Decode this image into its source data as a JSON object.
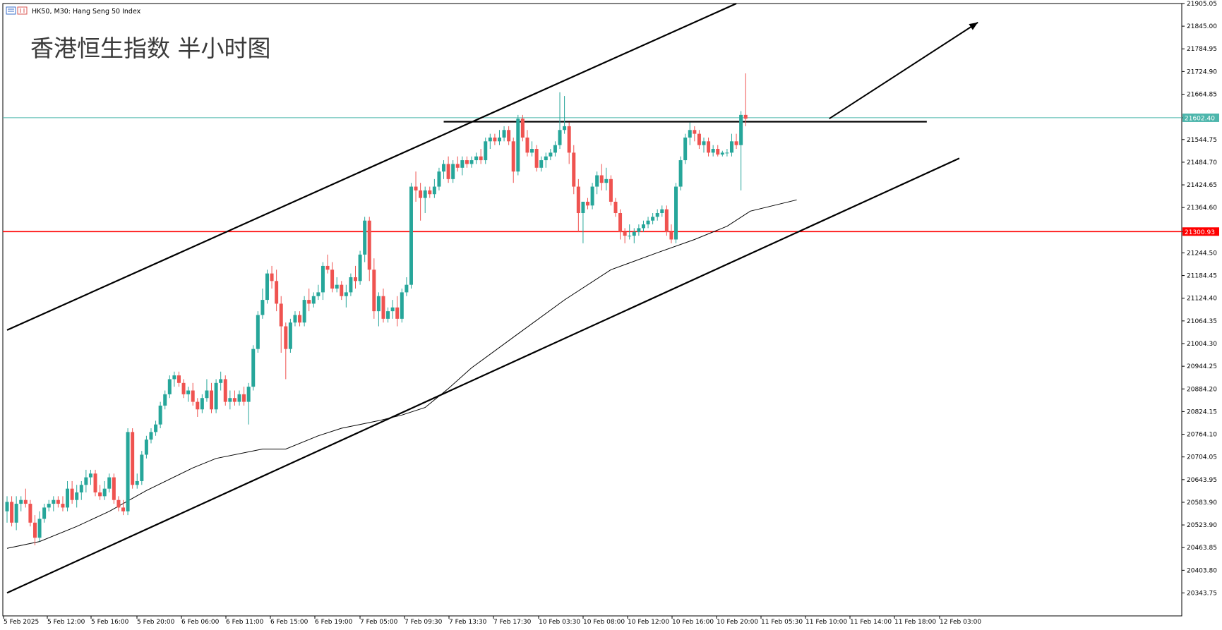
{
  "header": {
    "symbol_text": "HK50, M30:  Hang Seng 50 Index",
    "chart_title": "香港恒生指数 半小时图"
  },
  "colors": {
    "bull": "#26a69a",
    "bear": "#ef5350",
    "support": "#ff0000",
    "current_price_line": "#4db6ac",
    "trendline": "#000000",
    "moving_average": "#000000"
  },
  "chart_data": {
    "type": "candlestick",
    "title": "香港恒生指数 半小时图",
    "symbol": "HK50",
    "timeframe": "M30",
    "instrument": "Hang Seng 50 Index",
    "ylim": [
      20283,
      21905
    ],
    "y_ticks": [
      "21905.05",
      "21845.00",
      "21784.95",
      "21724.90",
      "21664.85",
      "21602.40",
      "21544.75",
      "21484.70",
      "21424.65",
      "21364.60",
      "21300.93",
      "21244.50",
      "21184.45",
      "21124.40",
      "21064.35",
      "21004.30",
      "20944.25",
      "20884.20",
      "20824.15",
      "20764.10",
      "20704.05",
      "20643.95",
      "20583.90",
      "20523.90",
      "20463.85",
      "20403.80",
      "20343.75"
    ],
    "x_labels": [
      "5 Feb 2025",
      "5 Feb 12:00",
      "5 Feb 16:00",
      "5 Feb 20:00",
      "6 Feb 06:00",
      "6 Feb 11:00",
      "6 Feb 15:00",
      "6 Feb 19:00",
      "7 Feb 05:00",
      "7 Feb 09:30",
      "7 Feb 13:30",
      "7 Feb 17:30",
      "10 Feb 03:30",
      "10 Feb 08:00",
      "10 Feb 12:00",
      "10 Feb 16:00",
      "10 Feb 20:00",
      "11 Feb 05:30",
      "11 Feb 10:00",
      "11 Feb 14:00",
      "11 Feb 18:00",
      "12 Feb 03:00"
    ],
    "current_price": {
      "value": 21602.4,
      "label": "21602.40"
    },
    "support_level": {
      "value": 21300.93,
      "label": "21300.93"
    },
    "resistance_level": 21590,
    "trendlines": [
      {
        "name": "upper-channel",
        "points": [
          [
            0,
            21040
          ],
          [
            157,
            21905
          ]
        ]
      },
      {
        "name": "lower-channel",
        "points": [
          [
            0,
            20344
          ],
          [
            205,
            21495
          ]
        ]
      },
      {
        "name": "resistance",
        "points": [
          [
            94,
            21592
          ],
          [
            198,
            21592
          ]
        ]
      },
      {
        "name": "direction-arrow",
        "points": [
          [
            177,
            21600
          ],
          [
            209,
            21855
          ]
        ]
      }
    ],
    "moving_average": [
      [
        0,
        20462
      ],
      [
        7,
        20480
      ],
      [
        15,
        20520
      ],
      [
        22,
        20560
      ],
      [
        30,
        20615
      ],
      [
        40,
        20675
      ],
      [
        45,
        20700
      ],
      [
        55,
        20725
      ],
      [
        60,
        20725
      ],
      [
        67,
        20760
      ],
      [
        72,
        20780
      ],
      [
        80,
        20800
      ],
      [
        85,
        20815
      ],
      [
        90,
        20835
      ],
      [
        95,
        20885
      ],
      [
        100,
        20940
      ],
      [
        110,
        21030
      ],
      [
        120,
        21120
      ],
      [
        130,
        21200
      ],
      [
        140,
        21245
      ],
      [
        148,
        21280
      ],
      [
        155,
        21315
      ],
      [
        160,
        21355
      ],
      [
        165,
        21370
      ],
      [
        170,
        21385
      ]
    ],
    "candles": [
      {
        "o": 20560,
        "h": 20600,
        "l": 20530,
        "c": 20585
      },
      {
        "o": 20585,
        "h": 20600,
        "l": 20520,
        "c": 20530
      },
      {
        "o": 20530,
        "h": 20600,
        "l": 20510,
        "c": 20580
      },
      {
        "o": 20580,
        "h": 20600,
        "l": 20560,
        "c": 20590
      },
      {
        "o": 20590,
        "h": 20620,
        "l": 20570,
        "c": 20580
      },
      {
        "o": 20580,
        "h": 20590,
        "l": 20520,
        "c": 20530
      },
      {
        "o": 20530,
        "h": 20550,
        "l": 20470,
        "c": 20490
      },
      {
        "o": 20490,
        "h": 20560,
        "l": 20480,
        "c": 20540
      },
      {
        "o": 20540,
        "h": 20580,
        "l": 20530,
        "c": 20570
      },
      {
        "o": 20570,
        "h": 20590,
        "l": 20560,
        "c": 20580
      },
      {
        "o": 20580,
        "h": 20600,
        "l": 20560,
        "c": 20590
      },
      {
        "o": 20590,
        "h": 20600,
        "l": 20570,
        "c": 20580
      },
      {
        "o": 20580,
        "h": 20600,
        "l": 20560,
        "c": 20570
      },
      {
        "o": 20570,
        "h": 20640,
        "l": 20560,
        "c": 20620
      },
      {
        "o": 20620,
        "h": 20640,
        "l": 20580,
        "c": 20590
      },
      {
        "o": 20590,
        "h": 20630,
        "l": 20570,
        "c": 20610
      },
      {
        "o": 20610,
        "h": 20640,
        "l": 20590,
        "c": 20630
      },
      {
        "o": 20630,
        "h": 20670,
        "l": 20610,
        "c": 20650
      },
      {
        "o": 20650,
        "h": 20670,
        "l": 20630,
        "c": 20660
      },
      {
        "o": 20660,
        "h": 20670,
        "l": 20600,
        "c": 20610
      },
      {
        "o": 20610,
        "h": 20630,
        "l": 20590,
        "c": 20600
      },
      {
        "o": 20600,
        "h": 20640,
        "l": 20590,
        "c": 20620
      },
      {
        "o": 20620,
        "h": 20660,
        "l": 20610,
        "c": 20650
      },
      {
        "o": 20650,
        "h": 20660,
        "l": 20580,
        "c": 20590
      },
      {
        "o": 20590,
        "h": 20600,
        "l": 20560,
        "c": 20570
      },
      {
        "o": 20570,
        "h": 20590,
        "l": 20550,
        "c": 20560
      },
      {
        "o": 20560,
        "h": 20780,
        "l": 20550,
        "c": 20770
      },
      {
        "o": 20770,
        "h": 20780,
        "l": 20620,
        "c": 20630
      },
      {
        "o": 20630,
        "h": 20660,
        "l": 20620,
        "c": 20640
      },
      {
        "o": 20640,
        "h": 20720,
        "l": 20630,
        "c": 20710
      },
      {
        "o": 20710,
        "h": 20760,
        "l": 20700,
        "c": 20750
      },
      {
        "o": 20750,
        "h": 20780,
        "l": 20740,
        "c": 20770
      },
      {
        "o": 20770,
        "h": 20800,
        "l": 20760,
        "c": 20790
      },
      {
        "o": 20790,
        "h": 20850,
        "l": 20780,
        "c": 20840
      },
      {
        "o": 20840,
        "h": 20880,
        "l": 20830,
        "c": 20870
      },
      {
        "o": 20870,
        "h": 20920,
        "l": 20860,
        "c": 20910
      },
      {
        "o": 20910,
        "h": 20930,
        "l": 20890,
        "c": 20920
      },
      {
        "o": 20920,
        "h": 20930,
        "l": 20890,
        "c": 20900
      },
      {
        "o": 20900,
        "h": 20910,
        "l": 20860,
        "c": 20870
      },
      {
        "o": 20870,
        "h": 20890,
        "l": 20850,
        "c": 20880
      },
      {
        "o": 20880,
        "h": 20900,
        "l": 20840,
        "c": 20850
      },
      {
        "o": 20850,
        "h": 20860,
        "l": 20810,
        "c": 20830
      },
      {
        "o": 20830,
        "h": 20870,
        "l": 20820,
        "c": 20860
      },
      {
        "o": 20860,
        "h": 20910,
        "l": 20850,
        "c": 20880
      },
      {
        "o": 20880,
        "h": 20900,
        "l": 20820,
        "c": 20830
      },
      {
        "o": 20830,
        "h": 20910,
        "l": 20820,
        "c": 20900
      },
      {
        "o": 20900,
        "h": 20930,
        "l": 20880,
        "c": 20910
      },
      {
        "o": 20910,
        "h": 20920,
        "l": 20840,
        "c": 20850
      },
      {
        "o": 20850,
        "h": 20880,
        "l": 20830,
        "c": 20860
      },
      {
        "o": 20860,
        "h": 20880,
        "l": 20840,
        "c": 20850
      },
      {
        "o": 20850,
        "h": 20880,
        "l": 20840,
        "c": 20870
      },
      {
        "o": 20870,
        "h": 20890,
        "l": 20840,
        "c": 20850
      },
      {
        "o": 20850,
        "h": 20900,
        "l": 20790,
        "c": 20890
      },
      {
        "o": 20890,
        "h": 21000,
        "l": 20880,
        "c": 20990
      },
      {
        "o": 20990,
        "h": 21090,
        "l": 20980,
        "c": 21080
      },
      {
        "o": 21080,
        "h": 21150,
        "l": 21070,
        "c": 21120
      },
      {
        "o": 21120,
        "h": 21200,
        "l": 21110,
        "c": 21190
      },
      {
        "o": 21190,
        "h": 21210,
        "l": 21150,
        "c": 21170
      },
      {
        "o": 21170,
        "h": 21200,
        "l": 21090,
        "c": 21110
      },
      {
        "o": 21110,
        "h": 21130,
        "l": 20980,
        "c": 21050
      },
      {
        "o": 21050,
        "h": 21060,
        "l": 20910,
        "c": 20990
      },
      {
        "o": 20990,
        "h": 21070,
        "l": 20980,
        "c": 21060
      },
      {
        "o": 21060,
        "h": 21090,
        "l": 21050,
        "c": 21080
      },
      {
        "o": 21080,
        "h": 21090,
        "l": 21050,
        "c": 21060
      },
      {
        "o": 21060,
        "h": 21130,
        "l": 21050,
        "c": 21120
      },
      {
        "o": 21120,
        "h": 21150,
        "l": 21090,
        "c": 21110
      },
      {
        "o": 21110,
        "h": 21140,
        "l": 21100,
        "c": 21130
      },
      {
        "o": 21130,
        "h": 21160,
        "l": 21120,
        "c": 21140
      },
      {
        "o": 21140,
        "h": 21220,
        "l": 21120,
        "c": 21210
      },
      {
        "o": 21210,
        "h": 21240,
        "l": 21190,
        "c": 21200
      },
      {
        "o": 21200,
        "h": 21220,
        "l": 21140,
        "c": 21150
      },
      {
        "o": 21150,
        "h": 21180,
        "l": 21140,
        "c": 21160
      },
      {
        "o": 21160,
        "h": 21170,
        "l": 21120,
        "c": 21130
      },
      {
        "o": 21130,
        "h": 21160,
        "l": 21100,
        "c": 21140
      },
      {
        "o": 21140,
        "h": 21190,
        "l": 21130,
        "c": 21180
      },
      {
        "o": 21180,
        "h": 21210,
        "l": 21150,
        "c": 21170
      },
      {
        "o": 21170,
        "h": 21250,
        "l": 21160,
        "c": 21240
      },
      {
        "o": 21240,
        "h": 21340,
        "l": 21220,
        "c": 21330
      },
      {
        "o": 21330,
        "h": 21340,
        "l": 21170,
        "c": 21200
      },
      {
        "o": 21200,
        "h": 21230,
        "l": 21070,
        "c": 21090
      },
      {
        "o": 21090,
        "h": 21140,
        "l": 21050,
        "c": 21130
      },
      {
        "o": 21130,
        "h": 21150,
        "l": 21060,
        "c": 21070
      },
      {
        "o": 21070,
        "h": 21100,
        "l": 21060,
        "c": 21090
      },
      {
        "o": 21090,
        "h": 21120,
        "l": 21070,
        "c": 21100
      },
      {
        "o": 21100,
        "h": 21130,
        "l": 21050,
        "c": 21070
      },
      {
        "o": 21070,
        "h": 21150,
        "l": 21060,
        "c": 21140
      },
      {
        "o": 21140,
        "h": 21180,
        "l": 21130,
        "c": 21160
      },
      {
        "o": 21160,
        "h": 21430,
        "l": 21150,
        "c": 21420
      },
      {
        "o": 21420,
        "h": 21460,
        "l": 21380,
        "c": 21410
      },
      {
        "o": 21410,
        "h": 21430,
        "l": 21330,
        "c": 21390
      },
      {
        "o": 21390,
        "h": 21420,
        "l": 21350,
        "c": 21410
      },
      {
        "o": 21410,
        "h": 21420,
        "l": 21390,
        "c": 21400
      },
      {
        "o": 21400,
        "h": 21440,
        "l": 21390,
        "c": 21420
      },
      {
        "o": 21420,
        "h": 21470,
        "l": 21410,
        "c": 21460
      },
      {
        "o": 21460,
        "h": 21490,
        "l": 21440,
        "c": 21480
      },
      {
        "o": 21480,
        "h": 21500,
        "l": 21430,
        "c": 21440
      },
      {
        "o": 21440,
        "h": 21490,
        "l": 21430,
        "c": 21480
      },
      {
        "o": 21480,
        "h": 21500,
        "l": 21460,
        "c": 21470
      },
      {
        "o": 21470,
        "h": 21500,
        "l": 21450,
        "c": 21490
      },
      {
        "o": 21490,
        "h": 21500,
        "l": 21470,
        "c": 21480
      },
      {
        "o": 21480,
        "h": 21500,
        "l": 21470,
        "c": 21490
      },
      {
        "o": 21490,
        "h": 21510,
        "l": 21480,
        "c": 21500
      },
      {
        "o": 21500,
        "h": 21520,
        "l": 21480,
        "c": 21490
      },
      {
        "o": 21490,
        "h": 21550,
        "l": 21480,
        "c": 21540
      },
      {
        "o": 21540,
        "h": 21560,
        "l": 21520,
        "c": 21550
      },
      {
        "o": 21550,
        "h": 21560,
        "l": 21530,
        "c": 21540
      },
      {
        "o": 21540,
        "h": 21570,
        "l": 21530,
        "c": 21550
      },
      {
        "o": 21550,
        "h": 21580,
        "l": 21540,
        "c": 21570
      },
      {
        "o": 21570,
        "h": 21580,
        "l": 21530,
        "c": 21540
      },
      {
        "o": 21540,
        "h": 21550,
        "l": 21430,
        "c": 21460
      },
      {
        "o": 21460,
        "h": 21610,
        "l": 21450,
        "c": 21600
      },
      {
        "o": 21600,
        "h": 21610,
        "l": 21540,
        "c": 21550
      },
      {
        "o": 21550,
        "h": 21570,
        "l": 21500,
        "c": 21510
      },
      {
        "o": 21510,
        "h": 21540,
        "l": 21500,
        "c": 21520
      },
      {
        "o": 21520,
        "h": 21530,
        "l": 21460,
        "c": 21470
      },
      {
        "o": 21470,
        "h": 21500,
        "l": 21460,
        "c": 21490
      },
      {
        "o": 21490,
        "h": 21510,
        "l": 21470,
        "c": 21500
      },
      {
        "o": 21500,
        "h": 21520,
        "l": 21490,
        "c": 21510
      },
      {
        "o": 21510,
        "h": 21540,
        "l": 21500,
        "c": 21530
      },
      {
        "o": 21530,
        "h": 21670,
        "l": 21520,
        "c": 21570
      },
      {
        "o": 21570,
        "h": 21660,
        "l": 21560,
        "c": 21580
      },
      {
        "o": 21580,
        "h": 21590,
        "l": 21480,
        "c": 21510
      },
      {
        "o": 21510,
        "h": 21530,
        "l": 21400,
        "c": 21420
      },
      {
        "o": 21420,
        "h": 21440,
        "l": 21300,
        "c": 21350
      },
      {
        "o": 21350,
        "h": 21380,
        "l": 21270,
        "c": 21380
      },
      {
        "o": 21380,
        "h": 21390,
        "l": 21360,
        "c": 21370
      },
      {
        "o": 21370,
        "h": 21430,
        "l": 21360,
        "c": 21420
      },
      {
        "o": 21420,
        "h": 21460,
        "l": 21400,
        "c": 21450
      },
      {
        "o": 21450,
        "h": 21480,
        "l": 21410,
        "c": 21430
      },
      {
        "o": 21430,
        "h": 21470,
        "l": 21410,
        "c": 21440
      },
      {
        "o": 21440,
        "h": 21450,
        "l": 21370,
        "c": 21380
      },
      {
        "o": 21380,
        "h": 21390,
        "l": 21340,
        "c": 21350
      },
      {
        "o": 21350,
        "h": 21360,
        "l": 21280,
        "c": 21300
      },
      {
        "o": 21300,
        "h": 21310,
        "l": 21270,
        "c": 21290
      },
      {
        "o": 21290,
        "h": 21320,
        "l": 21280,
        "c": 21290
      },
      {
        "o": 21290,
        "h": 21310,
        "l": 21270,
        "c": 21300
      },
      {
        "o": 21300,
        "h": 21320,
        "l": 21290,
        "c": 21310
      },
      {
        "o": 21310,
        "h": 21330,
        "l": 21300,
        "c": 21320
      },
      {
        "o": 21320,
        "h": 21340,
        "l": 21310,
        "c": 21330
      },
      {
        "o": 21330,
        "h": 21350,
        "l": 21320,
        "c": 21340
      },
      {
        "o": 21340,
        "h": 21360,
        "l": 21330,
        "c": 21350
      },
      {
        "o": 21350,
        "h": 21370,
        "l": 21340,
        "c": 21360
      },
      {
        "o": 21360,
        "h": 21370,
        "l": 21290,
        "c": 21300
      },
      {
        "o": 21300,
        "h": 21320,
        "l": 21270,
        "c": 21280
      },
      {
        "o": 21280,
        "h": 21430,
        "l": 21270,
        "c": 21420
      },
      {
        "o": 21420,
        "h": 21500,
        "l": 21410,
        "c": 21490
      },
      {
        "o": 21490,
        "h": 21560,
        "l": 21480,
        "c": 21550
      },
      {
        "o": 21550,
        "h": 21590,
        "l": 21530,
        "c": 21570
      },
      {
        "o": 21570,
        "h": 21580,
        "l": 21540,
        "c": 21560
      },
      {
        "o": 21560,
        "h": 21570,
        "l": 21520,
        "c": 21530
      },
      {
        "o": 21530,
        "h": 21550,
        "l": 21510,
        "c": 21540
      },
      {
        "o": 21540,
        "h": 21550,
        "l": 21500,
        "c": 21510
      },
      {
        "o": 21510,
        "h": 21530,
        "l": 21500,
        "c": 21520
      },
      {
        "o": 21520,
        "h": 21530,
        "l": 21500,
        "c": 21505
      },
      {
        "o": 21505,
        "h": 21515,
        "l": 21500,
        "c": 21510
      },
      {
        "o": 21510,
        "h": 21520,
        "l": 21500,
        "c": 21510
      },
      {
        "o": 21510,
        "h": 21560,
        "l": 21500,
        "c": 21540
      },
      {
        "o": 21540,
        "h": 21560,
        "l": 21520,
        "c": 21530
      },
      {
        "o": 21530,
        "h": 21620,
        "l": 21410,
        "c": 21610
      },
      {
        "o": 21610,
        "h": 21720,
        "l": 21580,
        "c": 21600
      }
    ]
  }
}
